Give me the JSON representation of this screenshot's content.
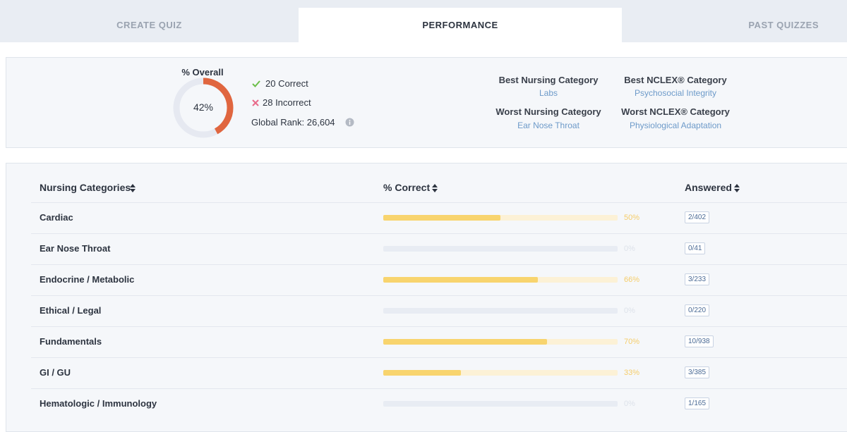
{
  "tabs": [
    "CREATE QUIZ",
    "PERFORMANCE",
    "PAST QUIZZES"
  ],
  "summary": {
    "overall_title": "% Overall",
    "overall": 42,
    "overall_label": "42%",
    "correct": "20 Correct",
    "incorrect": "28 Incorrect",
    "global_rank": "Global Rank: 26,604",
    "best_nursing": {
      "title": "Best Nursing Category",
      "value": "Labs"
    },
    "best_nclex": {
      "title": "Best NCLEX® Category",
      "value": "Psychosocial Integrity"
    },
    "worst_nursing": {
      "title": "Worst Nursing Category",
      "value": "Ear Nose Throat"
    },
    "worst_nclex": {
      "title": "Worst NCLEX® Category",
      "value": "Physiological Adaptation"
    }
  },
  "table": {
    "headers": [
      "Nursing Categories",
      "% Correct",
      "Answered"
    ],
    "rows": [
      {
        "name": "Cardiac",
        "percent": 50,
        "percent_label": "50%",
        "answered": "2/402"
      },
      {
        "name": "Ear Nose Throat",
        "percent": 0,
        "percent_label": "0%",
        "answered": "0/41"
      },
      {
        "name": "Endocrine / Metabolic",
        "percent": 66,
        "percent_label": "66%",
        "answered": "3/233"
      },
      {
        "name": "Ethical / Legal",
        "percent": 0,
        "percent_label": "0%",
        "answered": "0/220"
      },
      {
        "name": "Fundamentals",
        "percent": 70,
        "percent_label": "70%",
        "answered": "10/938"
      },
      {
        "name": "GI / GU",
        "percent": 33,
        "percent_label": "33%",
        "answered": "3/385"
      },
      {
        "name": "Hematologic / Immunology",
        "percent": 0,
        "percent_label": "0%",
        "answered": "1/165"
      }
    ]
  }
}
